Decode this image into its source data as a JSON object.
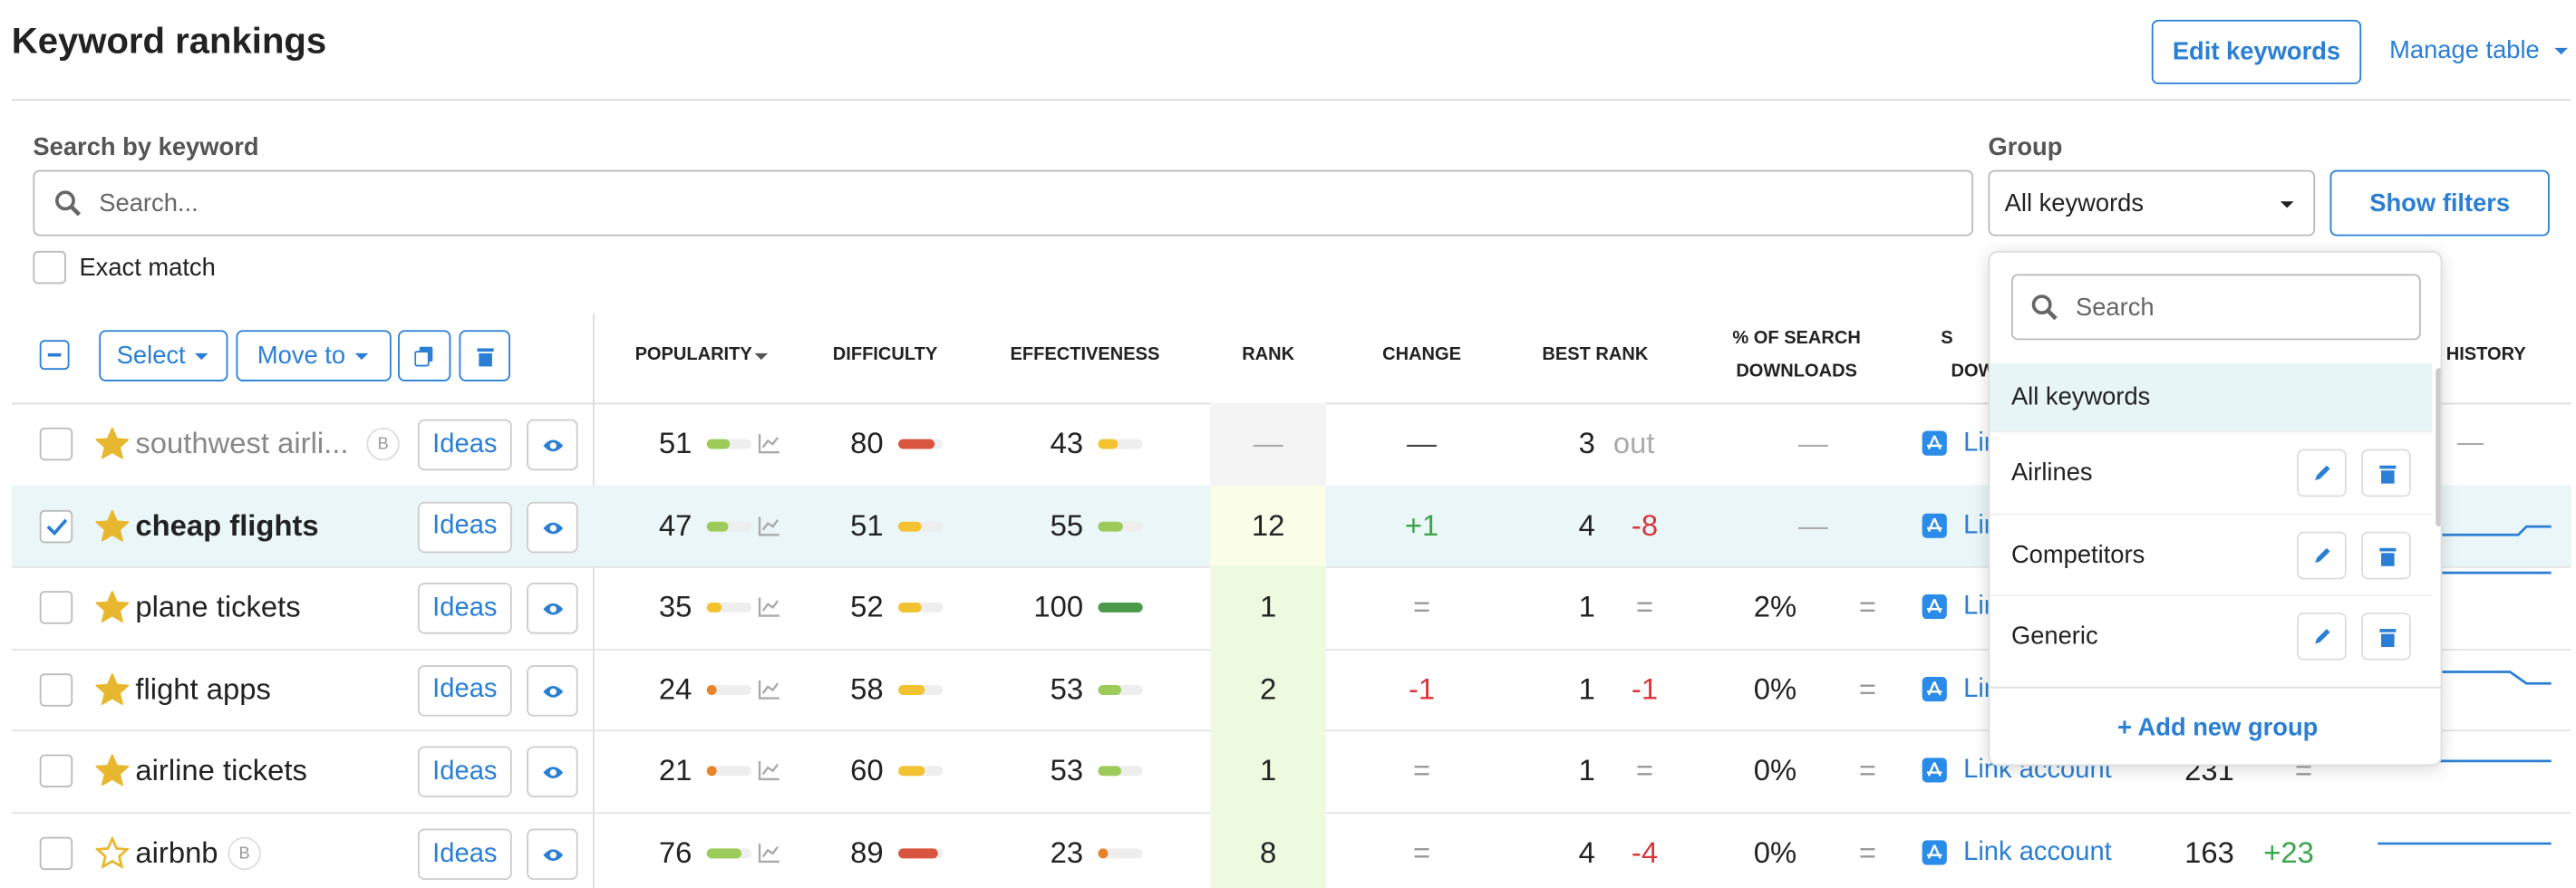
{
  "header": {
    "title": "Keyword rankings",
    "edit_button": "Edit keywords",
    "manage_table": "Manage table"
  },
  "filters": {
    "search_label": "Search by keyword",
    "search_placeholder": "Search...",
    "group_label": "Group",
    "group_value": "All keywords",
    "show_filters": "Show filters",
    "exact_match": "Exact match"
  },
  "toolbar": {
    "select": "Select",
    "move_to": "Move to"
  },
  "columns": {
    "popularity": "POPULARITY",
    "difficulty": "DIFFICULTY",
    "effectiveness": "EFFECTIVENESS",
    "rank": "RANK",
    "change": "CHANGE",
    "best_rank": "BEST RANK",
    "pct_search_downloads": [
      "% OF SEARCH",
      "DOWNLOADS"
    ],
    "partial_downloads": [
      "S",
      "DOW"
    ],
    "partial_history": "K HISTORY"
  },
  "ideas_label": "Ideas",
  "rows": [
    {
      "name": "southwest airli...",
      "badge": "B",
      "starred": true,
      "checked": false,
      "popularity": 51,
      "difficulty": 80,
      "effectiveness": 43,
      "rank": "—",
      "change": "—",
      "best_rank": 3,
      "best_change": "out",
      "pct": "—",
      "link": "Link account",
      "history": "—"
    },
    {
      "name": "cheap flights",
      "starred": true,
      "checked": true,
      "popularity": 47,
      "difficulty": 51,
      "effectiveness": 55,
      "rank": 12,
      "change": "+1",
      "best_rank": 4,
      "best_change": "-8",
      "pct": "—",
      "link": "Link account"
    },
    {
      "name": "plane tickets",
      "starred": true,
      "checked": false,
      "popularity": 35,
      "difficulty": 52,
      "effectiveness": 100,
      "rank": 1,
      "change": "=",
      "best_rank": 1,
      "best_change": "=",
      "pct": "2%",
      "pct_change": "=",
      "link": "Link account"
    },
    {
      "name": "flight apps",
      "starred": true,
      "checked": false,
      "popularity": 24,
      "difficulty": 58,
      "effectiveness": 53,
      "rank": 2,
      "change": "-1",
      "best_rank": 1,
      "best_change": "-1",
      "pct": "0%",
      "pct_change": "=",
      "link": "Link account"
    },
    {
      "name": "airline tickets",
      "starred": true,
      "checked": false,
      "popularity": 21,
      "difficulty": 60,
      "effectiveness": 53,
      "rank": 1,
      "change": "=",
      "best_rank": 1,
      "best_change": "=",
      "pct": "0%",
      "pct_change": "=",
      "link": "Link account",
      "downloads": 231,
      "downloads_change": "="
    },
    {
      "name": "airbnb",
      "badge": "B",
      "starred": false,
      "checked": false,
      "popularity": 76,
      "difficulty": 89,
      "effectiveness": 23,
      "rank": 8,
      "change": "=",
      "best_rank": 4,
      "best_change": "-4",
      "pct": "0%",
      "pct_change": "=",
      "link": "Link account",
      "downloads": 163,
      "downloads_change": "+23"
    }
  ],
  "dropdown": {
    "search_placeholder": "Search",
    "items": [
      "All keywords",
      "Airlines",
      "Competitors",
      "Generic"
    ],
    "add_group": "+ Add new group"
  }
}
